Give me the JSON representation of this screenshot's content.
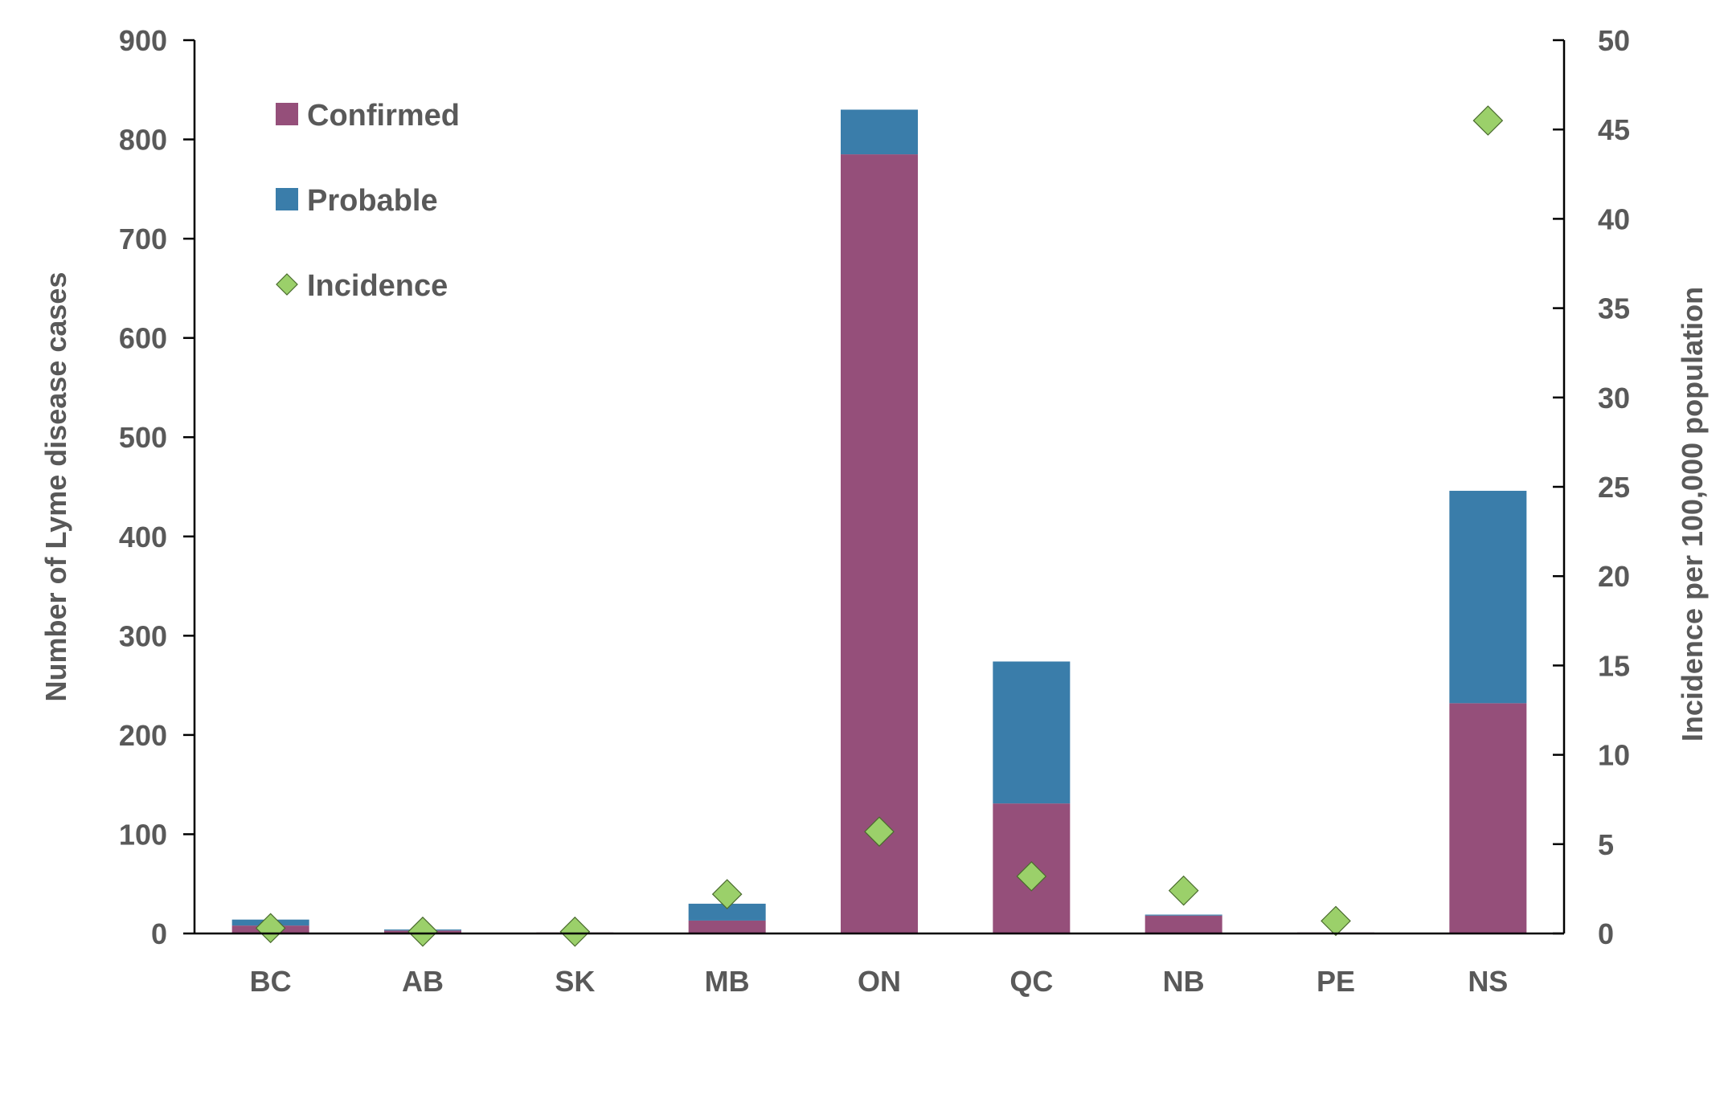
{
  "chart_data": {
    "type": "bar",
    "stacked": true,
    "categories": [
      "BC",
      "AB",
      "SK",
      "MB",
      "ON",
      "QC",
      "NB",
      "PE",
      "NS"
    ],
    "series": [
      {
        "name": "Confirmed",
        "color": "#954F7A",
        "axis": "left",
        "values": [
          8,
          3,
          1,
          13,
          785,
          131,
          18,
          1,
          232
        ]
      },
      {
        "name": "Probable",
        "color": "#3A7DAA",
        "axis": "left",
        "values": [
          6,
          1,
          0,
          17,
          45,
          143,
          1,
          0,
          214
        ]
      },
      {
        "name": "Incidence",
        "type": "scatter",
        "marker": "diamond",
        "color": "#9BD06A",
        "axis": "right",
        "values": [
          0.3,
          0.1,
          0.1,
          2.2,
          5.7,
          3.2,
          2.4,
          0.7,
          45.5
        ]
      }
    ],
    "ylabel": "Number of Lyme disease cases",
    "y2label": "Incidence per 100,000 population",
    "ylim": [
      0,
      900
    ],
    "y2lim": [
      0,
      50
    ],
    "yticks": [
      "0",
      "100",
      "200",
      "300",
      "400",
      "500",
      "600",
      "700",
      "800",
      "900"
    ],
    "y2ticks": [
      "0",
      "5",
      "10",
      "15",
      "20",
      "25",
      "30",
      "35",
      "40",
      "45",
      "50"
    ],
    "legend": {
      "position": "top-left",
      "entries": [
        "Confirmed",
        "Probable",
        "Incidence"
      ]
    },
    "grid": false
  }
}
